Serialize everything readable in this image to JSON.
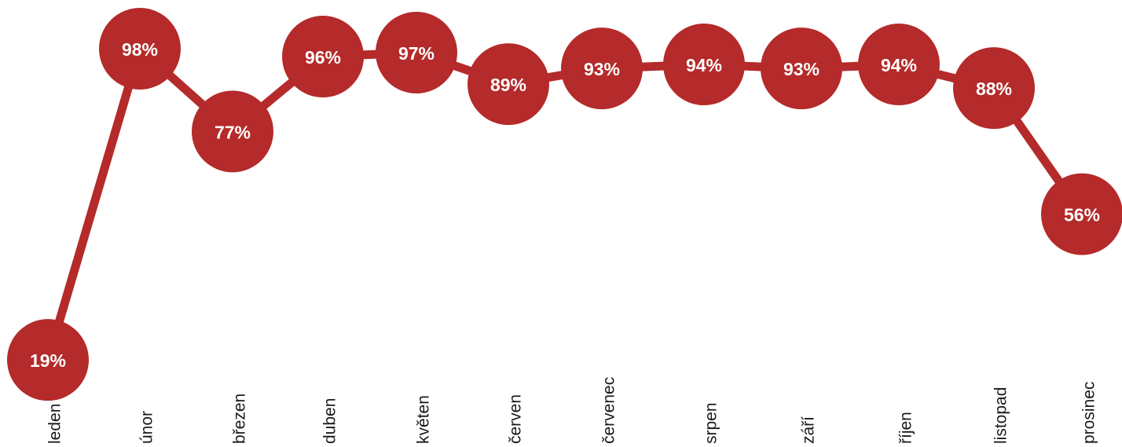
{
  "chart_data": {
    "type": "line",
    "categories": [
      "leden",
      "únor",
      "březen",
      "duben",
      "květen",
      "červen",
      "červenec",
      "srpen",
      "září",
      "říjen",
      "listopad",
      "prosinec"
    ],
    "values": [
      19,
      98,
      77,
      96,
      97,
      89,
      93,
      94,
      93,
      94,
      88,
      56
    ],
    "value_labels": [
      "19%",
      "98%",
      "77%",
      "96%",
      "97%",
      "89%",
      "93%",
      "94%",
      "93%",
      "94%",
      "88%",
      "56%"
    ],
    "y_unit": "%",
    "title": "",
    "xlabel": "",
    "ylabel": "",
    "ylim": [
      0,
      100
    ],
    "grid": false,
    "legend": "none",
    "color": "#b52a2a"
  }
}
